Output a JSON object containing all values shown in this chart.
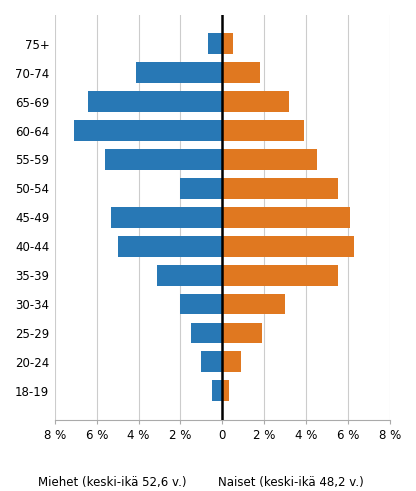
{
  "age_groups": [
    "18-19",
    "20-24",
    "25-29",
    "30-34",
    "35-39",
    "40-44",
    "45-49",
    "50-54",
    "55-59",
    "60-64",
    "65-69",
    "70-74",
    "75+"
  ],
  "men_values": [
    -0.5,
    -1.0,
    -1.5,
    -2.0,
    -3.1,
    -5.0,
    -5.3,
    -2.0,
    -5.6,
    -7.1,
    -6.4,
    -4.1,
    -0.7
  ],
  "women_values": [
    0.3,
    0.9,
    1.9,
    3.0,
    5.5,
    6.3,
    6.1,
    5.5,
    4.5,
    3.9,
    3.2,
    1.8,
    0.5
  ],
  "men_color": "#2878B5",
  "women_color": "#E07820",
  "xlabel_left": "Miehet (keski-ikä 52,6 v.)",
  "xlabel_right": "Naiset (keski-ikä 48,2 v.)",
  "xlim": [
    -8,
    8
  ],
  "xticks": [
    -8,
    -6,
    -4,
    -2,
    0,
    2,
    4,
    6,
    8
  ],
  "xtick_labels": [
    "8 %",
    "6 %",
    "4 %",
    "2 %",
    "0",
    "2 %",
    "4 %",
    "6 %",
    "8 %"
  ],
  "background_color": "#ffffff",
  "grid_color": "#cccccc"
}
